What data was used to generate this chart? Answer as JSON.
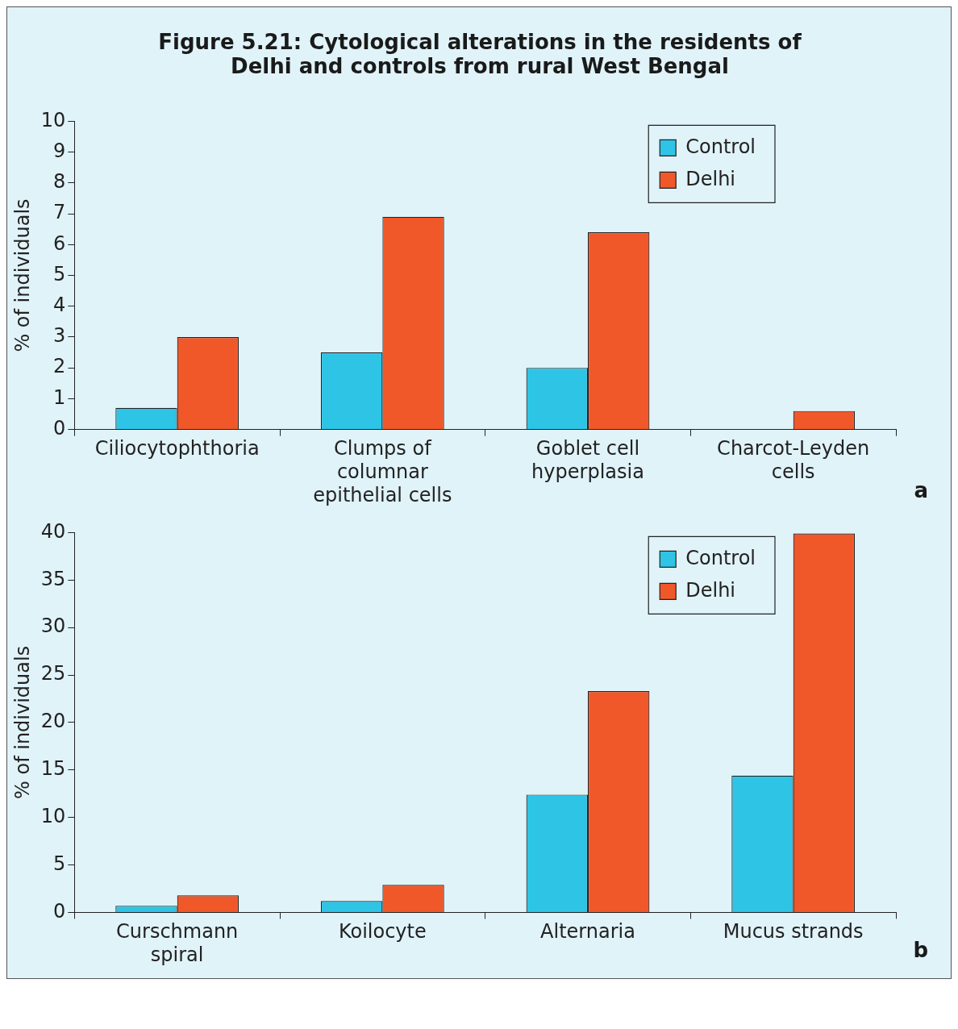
{
  "chart_data": [
    {
      "type": "bar",
      "title": "Figure 5.21: Cytological alterations in the residents of Delhi and controls from rural West Bengal",
      "ylabel": "% of individuals",
      "categories": [
        "Ciliocytophthoria",
        "Clumps of columnar epithelial cells",
        "Goblet cell hyperplasia",
        "Charcot-Leyden cells"
      ],
      "series": [
        {
          "name": "Control",
          "color": "#2ec4e6",
          "values": [
            0.7,
            2.5,
            2.0,
            0
          ]
        },
        {
          "name": "Delhi",
          "color": "#f0582a",
          "values": [
            3.0,
            6.9,
            6.4,
            0.6
          ]
        }
      ],
      "ylim": [
        0,
        10
      ],
      "yticks": [
        0,
        1,
        2,
        3,
        4,
        5,
        6,
        7,
        8,
        9,
        10
      ],
      "grid": false,
      "legend": "top right",
      "annotations": [
        "a"
      ]
    },
    {
      "type": "bar",
      "ylabel": "% of individuals",
      "categories": [
        "Curschmann spiral",
        "Koilocyte",
        "Alternaria",
        "Mucus strands"
      ],
      "series": [
        {
          "name": "Control",
          "color": "#2ec4e6",
          "values": [
            0.7,
            1.2,
            12.4,
            14.4
          ]
        },
        {
          "name": "Delhi",
          "color": "#f0582a",
          "values": [
            1.8,
            2.9,
            23.3,
            39.9
          ]
        }
      ],
      "ylim": [
        0,
        40
      ],
      "yticks": [
        0,
        5,
        10,
        15,
        20,
        25,
        30,
        35,
        40
      ],
      "grid": false,
      "legend": "top right",
      "annotations": [
        "b"
      ]
    }
  ]
}
